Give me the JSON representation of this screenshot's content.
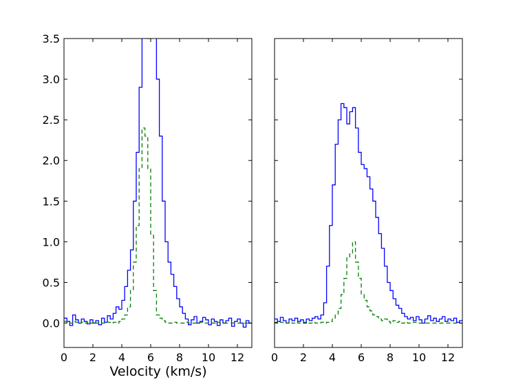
{
  "chart_data": [
    {
      "type": "line",
      "step": true,
      "title": "",
      "xlabel": "Velocity (km/s)",
      "ylabel": "",
      "xlim": [
        0,
        13
      ],
      "ylim": [
        -0.3,
        3.5
      ],
      "x_ticks": [
        "0",
        "2",
        "4",
        "6",
        "8",
        "10",
        "12"
      ],
      "y_ticks": [
        "0.0",
        "0.5",
        "1.0",
        "1.5",
        "2.0",
        "2.5",
        "3.0",
        "3.5"
      ],
      "grid": false,
      "series": [
        {
          "color": "#0000ff",
          "linestyle": "solid",
          "x": [
            0.0,
            0.2,
            0.4,
            0.6,
            0.8,
            1.0,
            1.2,
            1.4,
            1.6,
            1.8,
            2.0,
            2.2,
            2.4,
            2.6,
            2.8,
            3.0,
            3.2,
            3.4,
            3.6,
            3.8,
            4.0,
            4.2,
            4.4,
            4.6,
            4.8,
            5.0,
            5.2,
            5.4,
            5.6,
            5.8,
            6.0,
            6.2,
            6.4,
            6.6,
            6.8,
            7.0,
            7.2,
            7.4,
            7.6,
            7.8,
            8.0,
            8.2,
            8.4,
            8.6,
            8.8,
            9.0,
            9.2,
            9.4,
            9.6,
            9.8,
            10.0,
            10.2,
            10.4,
            10.6,
            10.8,
            11.0,
            11.2,
            11.4,
            11.6,
            11.8,
            12.0,
            12.2,
            12.4,
            12.6,
            12.8
          ],
          "y": [
            0.06,
            0.02,
            -0.03,
            0.1,
            0.04,
            0.0,
            0.05,
            0.02,
            -0.01,
            0.04,
            0.0,
            0.03,
            -0.02,
            0.06,
            0.01,
            0.09,
            0.05,
            0.12,
            0.2,
            0.17,
            0.28,
            0.45,
            0.65,
            0.9,
            1.5,
            2.1,
            2.9,
            3.6,
            3.8,
            3.5,
            3.7,
            3.6,
            3.0,
            2.3,
            1.5,
            1.0,
            0.75,
            0.6,
            0.45,
            0.3,
            0.2,
            0.12,
            0.05,
            -0.02,
            0.04,
            0.08,
            0.0,
            0.02,
            0.07,
            0.04,
            -0.02,
            0.05,
            0.02,
            -0.03,
            0.04,
            0.0,
            0.03,
            0.06,
            -0.04,
            0.02,
            0.05,
            0.0,
            -0.05,
            0.03,
            0.0
          ]
        },
        {
          "color": "#008000",
          "linestyle": "dashed",
          "x": [
            0.0,
            0.2,
            0.4,
            0.6,
            0.8,
            1.0,
            1.2,
            1.4,
            1.6,
            1.8,
            2.0,
            2.2,
            2.4,
            2.6,
            2.8,
            3.0,
            3.2,
            3.4,
            3.6,
            3.8,
            4.0,
            4.2,
            4.4,
            4.6,
            4.8,
            5.0,
            5.2,
            5.4,
            5.6,
            5.8,
            6.0,
            6.2,
            6.4,
            6.6,
            6.8,
            7.0,
            7.2,
            7.4,
            7.6,
            7.8,
            8.0,
            8.2,
            8.4,
            8.6,
            8.8,
            9.0,
            9.2,
            9.4,
            9.6,
            9.8,
            10.0,
            10.2,
            10.4,
            10.6,
            10.8,
            11.0,
            11.2,
            11.4,
            11.6,
            11.8,
            12.0,
            12.2,
            12.4,
            12.6,
            12.8
          ],
          "y": [
            0.02,
            0.01,
            0.0,
            0.02,
            0.01,
            0.0,
            0.01,
            0.0,
            0.01,
            0.0,
            0.01,
            0.0,
            0.01,
            0.0,
            0.0,
            0.01,
            0.0,
            0.01,
            0.0,
            0.02,
            0.05,
            0.1,
            0.2,
            0.4,
            0.75,
            1.2,
            1.9,
            2.4,
            2.3,
            1.9,
            1.08,
            0.4,
            0.1,
            0.06,
            0.03,
            0.01,
            0.0,
            0.0,
            0.01,
            0.0,
            0.0,
            0.0,
            0.01,
            0.0,
            0.0,
            0.0,
            0.0,
            0.01,
            0.0,
            0.0,
            0.0,
            0.0,
            0.0,
            0.01,
            0.0,
            0.0,
            0.0,
            0.0,
            0.0,
            0.0,
            0.0,
            0.0,
            0.0,
            0.0,
            0.0
          ]
        }
      ]
    },
    {
      "type": "line",
      "step": true,
      "title": "",
      "xlabel": "",
      "ylabel": "",
      "xlim": [
        0,
        13
      ],
      "ylim": [
        -0.3,
        3.5
      ],
      "x_ticks": [
        "0",
        "2",
        "4",
        "6",
        "8",
        "10",
        "12"
      ],
      "y_ticks": [],
      "grid": false,
      "series": [
        {
          "color": "#0000ff",
          "linestyle": "solid",
          "x": [
            0.0,
            0.2,
            0.4,
            0.6,
            0.8,
            1.0,
            1.2,
            1.4,
            1.6,
            1.8,
            2.0,
            2.2,
            2.4,
            2.6,
            2.8,
            3.0,
            3.2,
            3.4,
            3.6,
            3.8,
            4.0,
            4.2,
            4.4,
            4.6,
            4.8,
            5.0,
            5.2,
            5.4,
            5.6,
            5.8,
            6.0,
            6.2,
            6.4,
            6.6,
            6.8,
            7.0,
            7.2,
            7.4,
            7.6,
            7.8,
            8.0,
            8.2,
            8.4,
            8.6,
            8.8,
            9.0,
            9.2,
            9.4,
            9.6,
            9.8,
            10.0,
            10.2,
            10.4,
            10.6,
            10.8,
            11.0,
            11.2,
            11.4,
            11.6,
            11.8,
            12.0,
            12.2,
            12.4,
            12.6,
            12.8
          ],
          "y": [
            0.05,
            0.02,
            0.07,
            0.03,
            0.0,
            0.05,
            0.03,
            0.06,
            0.02,
            0.04,
            0.0,
            0.05,
            0.03,
            0.06,
            0.08,
            0.05,
            0.1,
            0.25,
            0.7,
            1.2,
            1.7,
            2.2,
            2.5,
            2.7,
            2.65,
            2.45,
            2.6,
            2.65,
            2.4,
            2.1,
            1.95,
            1.9,
            1.8,
            1.65,
            1.5,
            1.3,
            1.1,
            0.92,
            0.7,
            0.5,
            0.4,
            0.3,
            0.22,
            0.18,
            0.12,
            0.08,
            0.05,
            0.07,
            0.03,
            0.08,
            0.04,
            0.0,
            0.05,
            0.09,
            0.03,
            0.06,
            0.02,
            0.05,
            0.08,
            0.02,
            0.05,
            0.03,
            0.06,
            0.01,
            0.03
          ]
        },
        {
          "color": "#008000",
          "linestyle": "dashed",
          "x": [
            0.0,
            0.2,
            0.4,
            0.6,
            0.8,
            1.0,
            1.2,
            1.4,
            1.6,
            1.8,
            2.0,
            2.2,
            2.4,
            2.6,
            2.8,
            3.0,
            3.2,
            3.4,
            3.6,
            3.8,
            4.0,
            4.2,
            4.4,
            4.6,
            4.8,
            5.0,
            5.2,
            5.4,
            5.6,
            5.8,
            6.0,
            6.2,
            6.4,
            6.6,
            6.8,
            7.0,
            7.2,
            7.4,
            7.6,
            7.8,
            8.0,
            8.2,
            8.4,
            8.6,
            8.8,
            9.0,
            9.2,
            9.4,
            9.6,
            9.8,
            10.0,
            10.2,
            10.4,
            10.6,
            10.8,
            11.0,
            11.2,
            11.4,
            11.6,
            11.8,
            12.0,
            12.2,
            12.4,
            12.6,
            12.8
          ],
          "y": [
            0.01,
            0.0,
            0.01,
            0.0,
            0.0,
            0.01,
            0.0,
            0.01,
            0.0,
            0.0,
            0.01,
            0.0,
            0.0,
            0.01,
            0.0,
            0.0,
            0.01,
            0.0,
            0.01,
            0.02,
            0.05,
            0.1,
            0.18,
            0.35,
            0.55,
            0.8,
            0.85,
            1.0,
            0.75,
            0.55,
            0.35,
            0.28,
            0.2,
            0.15,
            0.1,
            0.08,
            0.05,
            0.03,
            0.05,
            0.02,
            0.0,
            0.03,
            0.01,
            0.02,
            0.0,
            0.01,
            0.0,
            0.0,
            0.01,
            0.0,
            0.0,
            0.0,
            0.0,
            0.0,
            0.0,
            0.0,
            0.0,
            0.0,
            0.0,
            0.0,
            0.0,
            0.0,
            0.0,
            0.0,
            0.0
          ]
        }
      ]
    }
  ]
}
